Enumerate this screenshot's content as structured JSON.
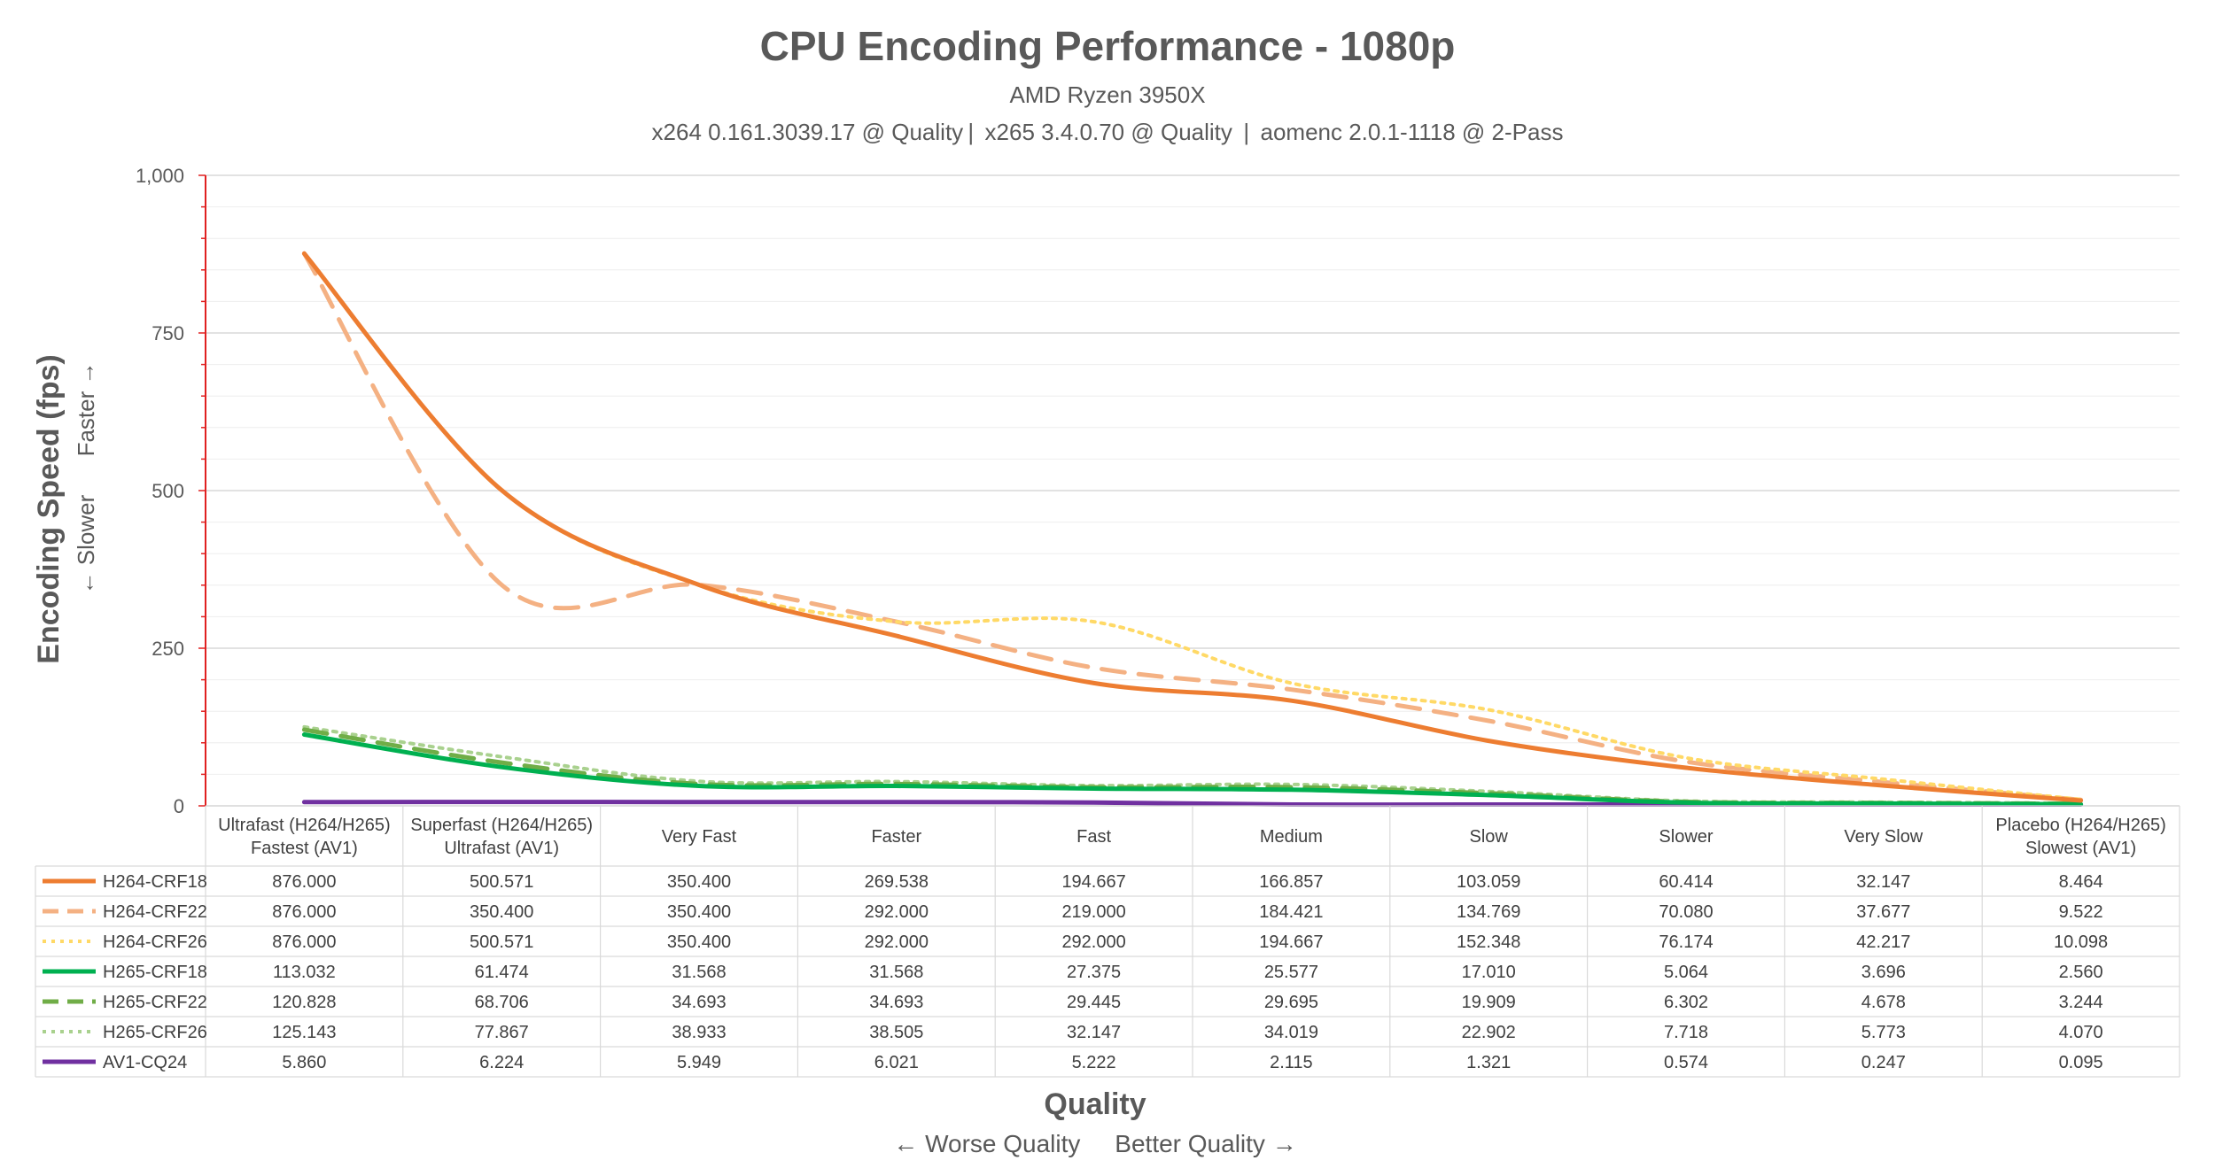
{
  "chart_data": {
    "type": "line",
    "title": "CPU Encoding Performance - 1080p",
    "subtitle": "AMD Ryzen 3950X",
    "subtitle2": "x264 0.161.3039.17 @ Quality |  x265 3.4.0.70 @ Quality  |  aomenc 2.0.1-1118 @ 2-Pass",
    "ylabel": "Encoding Speed (fps)",
    "ylabel_sub": "← Slower      Faster →",
    "xlabel": "Quality",
    "xlabel_sub": "← Worse Quality     Better Quality →",
    "ylim": [
      0,
      1000
    ],
    "yticks": [
      {
        "value": 0,
        "label": "0"
      },
      {
        "value": 250,
        "label": "250"
      },
      {
        "value": 500,
        "label": "500"
      },
      {
        "value": 750,
        "label": "750"
      },
      {
        "value": 1000,
        "label": "1,000"
      }
    ],
    "categories": [
      [
        "Ultrafast (H264/H265)",
        "Fastest (AV1)"
      ],
      [
        "Superfast (H264/H265)",
        "Ultrafast (AV1)"
      ],
      [
        "Very Fast"
      ],
      [
        "Faster"
      ],
      [
        "Fast"
      ],
      [
        "Medium"
      ],
      [
        "Slow"
      ],
      [
        "Slower"
      ],
      [
        "Very Slow"
      ],
      [
        "Placebo (H264/H265)",
        "Slowest (AV1)"
      ]
    ],
    "series": [
      {
        "name": "H264-CRF18",
        "color": "#ed7d31",
        "dash": "solid",
        "labels": [
          "876.000",
          "500.571",
          "350.400",
          "269.538",
          "194.667",
          "166.857",
          "103.059",
          "60.414",
          "32.147",
          "8.464"
        ],
        "values": [
          876.0,
          500.571,
          350.4,
          269.538,
          194.667,
          166.857,
          103.059,
          60.414,
          32.147,
          8.464
        ]
      },
      {
        "name": "H264-CRF22",
        "color": "#f4b183",
        "dash": "dash",
        "labels": [
          "876.000",
          "350.400",
          "350.400",
          "292.000",
          "219.000",
          "184.421",
          "134.769",
          "70.080",
          "37.677",
          "9.522"
        ],
        "values": [
          876.0,
          350.4,
          350.4,
          292.0,
          219.0,
          184.421,
          134.769,
          70.08,
          37.677,
          9.522
        ]
      },
      {
        "name": "H264-CRF26",
        "color": "#ffd966",
        "dash": "dot",
        "labels": [
          "876.000",
          "500.571",
          "350.400",
          "292.000",
          "292.000",
          "194.667",
          "152.348",
          "76.174",
          "42.217",
          "10.098"
        ],
        "values": [
          876.0,
          500.571,
          350.4,
          292.0,
          292.0,
          194.667,
          152.348,
          76.174,
          42.217,
          10.098
        ]
      },
      {
        "name": "H265-CRF18",
        "color": "#00b050",
        "dash": "solid",
        "labels": [
          "113.032",
          "61.474",
          "31.568",
          "31.568",
          "27.375",
          "25.577",
          "17.010",
          "5.064",
          "3.696",
          "2.560"
        ],
        "values": [
          113.032,
          61.474,
          31.568,
          31.568,
          27.375,
          25.577,
          17.01,
          5.064,
          3.696,
          2.56
        ]
      },
      {
        "name": "H265-CRF22",
        "color": "#70ad47",
        "dash": "dash",
        "labels": [
          "120.828",
          "68.706",
          "34.693",
          "34.693",
          "29.445",
          "29.695",
          "19.909",
          "6.302",
          "4.678",
          "3.244"
        ],
        "values": [
          120.828,
          68.706,
          34.693,
          34.693,
          29.445,
          29.695,
          19.909,
          6.302,
          4.678,
          3.244
        ]
      },
      {
        "name": "H265-CRF26",
        "color": "#a9d18e",
        "dash": "dot",
        "labels": [
          "125.143",
          "77.867",
          "38.933",
          "38.505",
          "32.147",
          "34.019",
          "22.902",
          "7.718",
          "5.773",
          "4.070"
        ],
        "values": [
          125.143,
          77.867,
          38.933,
          38.505,
          32.147,
          34.019,
          22.902,
          7.718,
          5.773,
          4.07
        ]
      },
      {
        "name": "AV1-CQ24",
        "color": "#7030a0",
        "dash": "solid",
        "labels": [
          "5.860",
          "6.224",
          "5.949",
          "6.021",
          "5.222",
          "2.115",
          "1.321",
          "0.574",
          "0.247",
          "0.095"
        ],
        "values": [
          5.86,
          6.224,
          5.949,
          6.021,
          5.222,
          2.115,
          1.321,
          0.574,
          0.247,
          0.095
        ]
      }
    ]
  }
}
